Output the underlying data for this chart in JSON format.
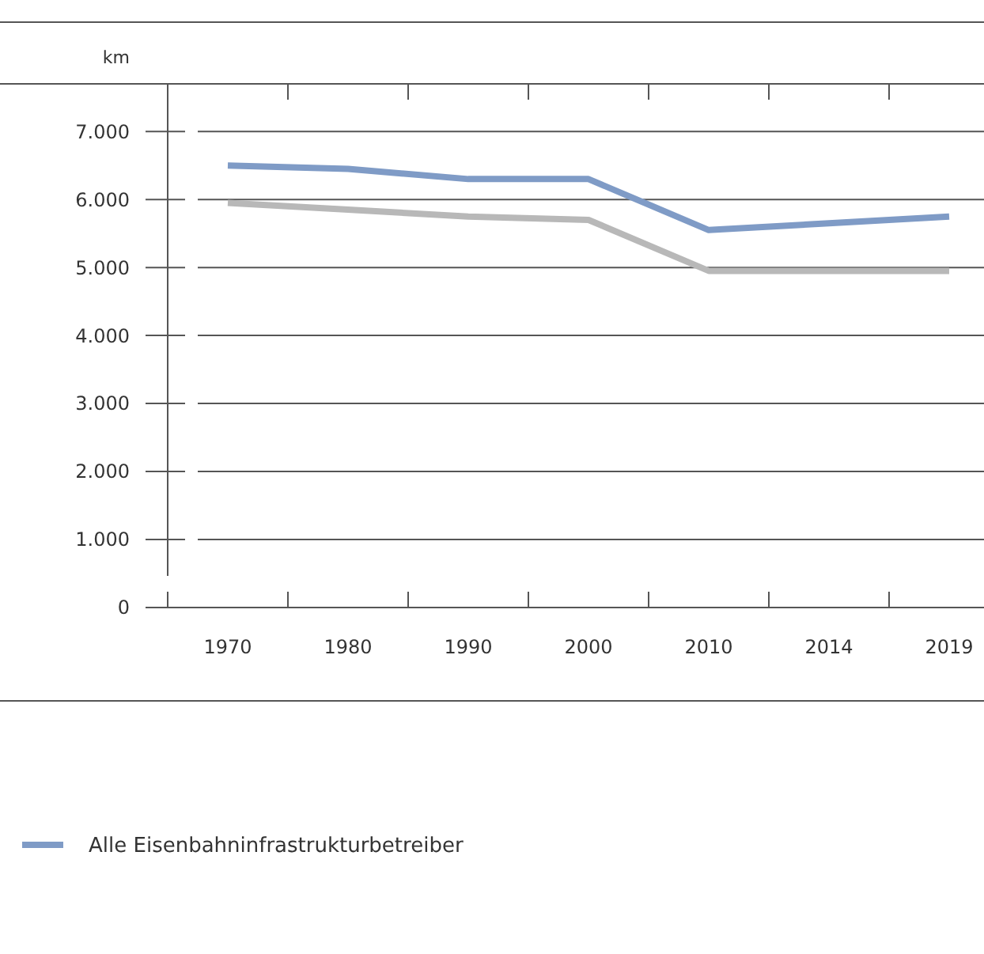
{
  "chart_data": {
    "type": "line",
    "ylabel": "km",
    "categories": [
      "1970",
      "1980",
      "1990",
      "2000",
      "2010",
      "2014",
      "2019"
    ],
    "series": [
      {
        "name": "Alle Eisenbahninfrastrukturbetreiber",
        "color": "#7f9bc6",
        "values": [
          6500,
          6450,
          6300,
          6300,
          5550,
          5650,
          5750
        ]
      },
      {
        "color": "#b8b8b8",
        "values": [
          5950,
          5850,
          5750,
          5700,
          4950,
          4950,
          4950
        ]
      }
    ],
    "ylim": [
      0,
      7700
    ],
    "yticks": [
      {
        "value": 0,
        "label": "0"
      },
      {
        "value": 1000,
        "label": "1.000"
      },
      {
        "value": 2000,
        "label": "2.000"
      },
      {
        "value": 3000,
        "label": "3.000"
      },
      {
        "value": 4000,
        "label": "4.000"
      },
      {
        "value": 5000,
        "label": "5.000"
      },
      {
        "value": 6000,
        "label": "6.000"
      },
      {
        "value": 7000,
        "label": "7.000"
      }
    ],
    "grid": "y",
    "legend": "bottom left",
    "marker": "none",
    "line_style": "solid"
  }
}
